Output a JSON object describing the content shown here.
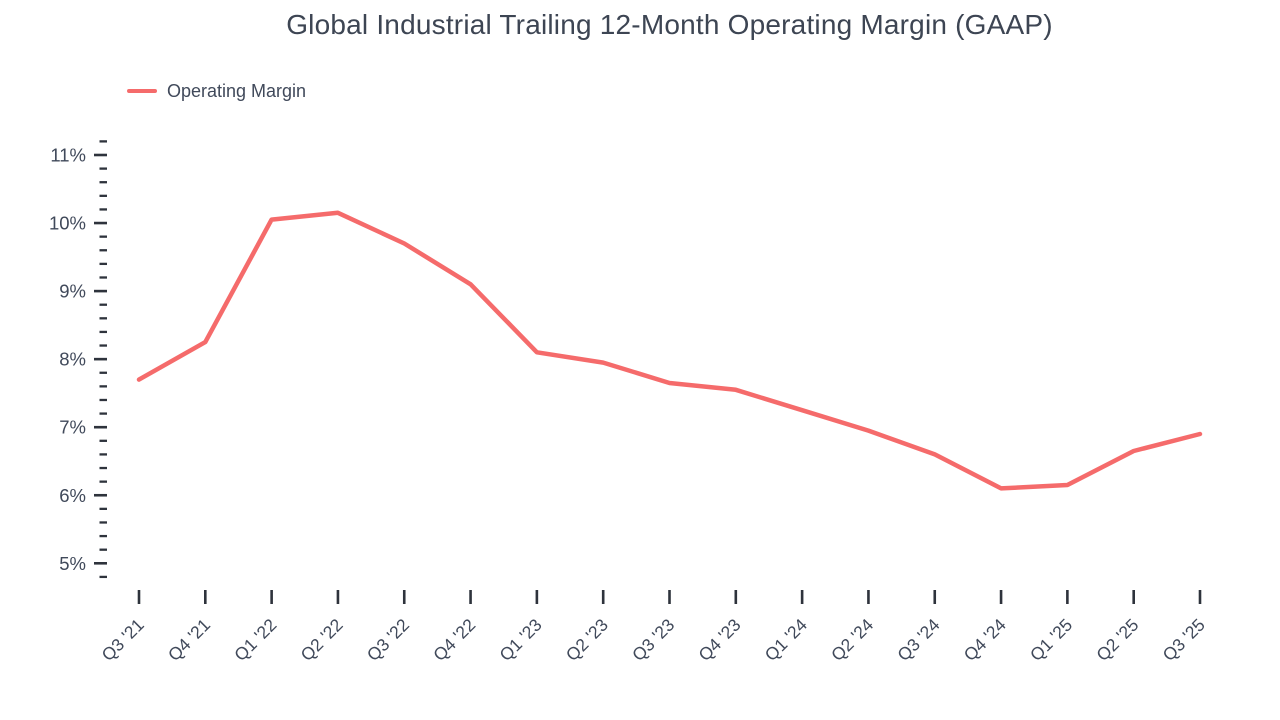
{
  "page": {
    "background": "#ffffff"
  },
  "style": {
    "title_color": "#3d4553",
    "text_color": "#40495a",
    "tick_color": "#2e333c",
    "line_color": "#f56b6b"
  },
  "chart_data": {
    "type": "line",
    "title": "Global Industrial Trailing 12-Month Operating Margin (GAAP)",
    "grid": false,
    "legend": {
      "position": "top-left",
      "entries": [
        {
          "label": "Operating Margin",
          "color": "#f56b6b"
        }
      ]
    },
    "categories": [
      "Q3 '21",
      "Q4 '21",
      "Q1 '22",
      "Q2 '22",
      "Q3 '22",
      "Q4 '22",
      "Q1 '23",
      "Q2 '23",
      "Q3 '23",
      "Q4 '23",
      "Q1 '24",
      "Q2 '24",
      "Q3 '24",
      "Q4 '24",
      "Q1 '25",
      "Q2 '25",
      "Q3 '25"
    ],
    "series": [
      {
        "name": "Operating Margin",
        "color": "#f56b6b",
        "unit": "%",
        "values": [
          7.7,
          8.25,
          10.05,
          10.15,
          9.7,
          9.1,
          8.1,
          7.95,
          7.65,
          7.55,
          7.25,
          6.95,
          6.6,
          6.1,
          6.15,
          6.65,
          6.9
        ]
      }
    ],
    "yaxis": {
      "unit": "%",
      "major_ticks": [
        {
          "value": 5,
          "label": "5%"
        },
        {
          "value": 6,
          "label": "6%"
        },
        {
          "value": 7,
          "label": "7%"
        },
        {
          "value": 8,
          "label": "8%"
        },
        {
          "value": 9,
          "label": "9%"
        },
        {
          "value": 10,
          "label": "10%"
        },
        {
          "value": 11,
          "label": "11%"
        }
      ],
      "minor_step": 0.2,
      "axis_min": 4.8,
      "axis_max": 11.2
    },
    "xaxis": {
      "tick_rotation_deg": -45
    }
  }
}
